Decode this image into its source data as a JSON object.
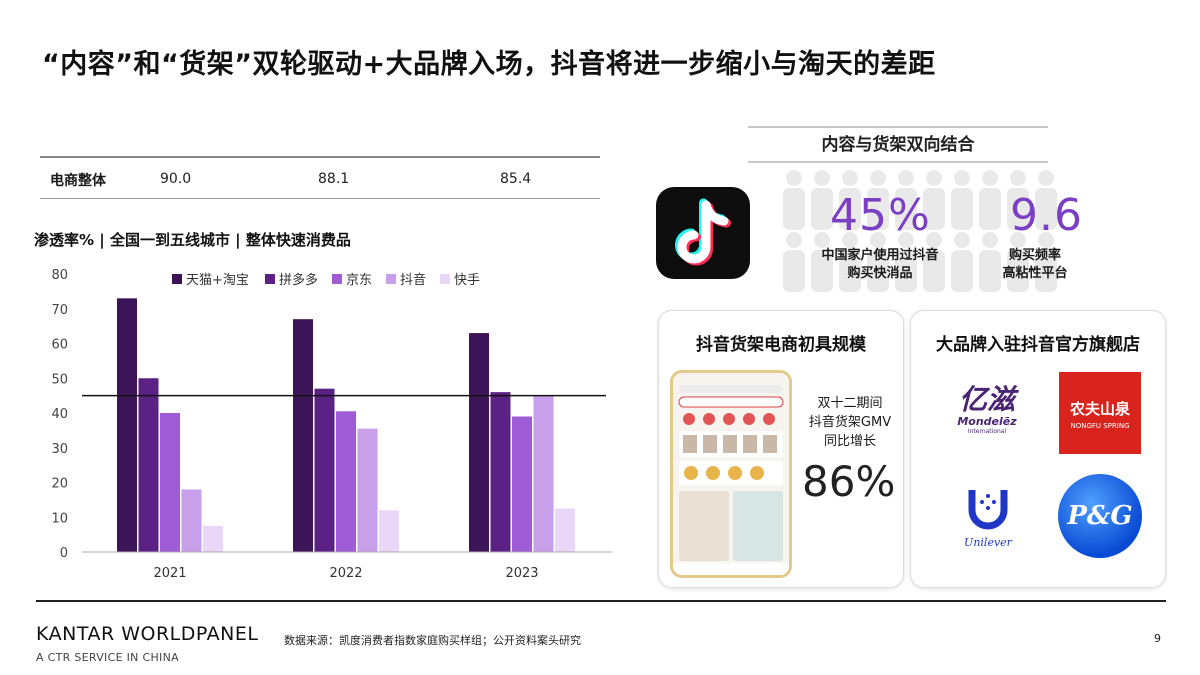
{
  "title": "“内容”和“货架”双轮驱动+大品牌入场，抖音将进一步缩小与淘天的差距",
  "ecommerce": {
    "label": "电商整体",
    "values": [
      "90.0",
      "88.1",
      "85.4"
    ]
  },
  "chart_subtitle": "渗透率% | 全国一到五线城市 | 整体快速消费品",
  "chart_data": {
    "type": "bar",
    "categories": [
      "2021",
      "2022",
      "2023"
    ],
    "series": [
      {
        "name": "天猫+淘宝",
        "color": "#3d1458",
        "values": [
          73,
          67,
          63
        ]
      },
      {
        "name": "拼多多",
        "color": "#5b2184",
        "values": [
          50,
          47,
          46
        ]
      },
      {
        "name": "京东",
        "color": "#a05bd6",
        "values": [
          40,
          40.5,
          39
        ]
      },
      {
        "name": "抖音",
        "color": "#c79fea",
        "values": [
          18,
          35.5,
          45
        ]
      },
      {
        "name": "快手",
        "color": "#ead6f7",
        "values": [
          7.5,
          12,
          12.5
        ]
      }
    ],
    "ylim": [
      0,
      80
    ],
    "yticks": [
      "0",
      "10",
      "20",
      "30",
      "40",
      "50",
      "60",
      "70",
      "80"
    ],
    "reference_line": 45,
    "legend": "top",
    "grid": false
  },
  "panel": {
    "title": "内容与货架双向结合",
    "stat1": {
      "value": "45%",
      "label_line1": "中国家户使用过抖音",
      "label_line2": "购买快消品"
    },
    "stat2": {
      "value": "9.6",
      "label_line1": "购买频率",
      "label_line2": "高粘性平台"
    }
  },
  "card1": {
    "title": "抖音货架电商初具规模",
    "gmv_line1": "双十二期间",
    "gmv_line2": "抖音货架GMV",
    "gmv_line3": "同比增长",
    "gmv_value": "86%"
  },
  "card2": {
    "title": "大品牌入驻抖音官方旗舰店",
    "brands": {
      "mondelez_cn": "亿滋",
      "mondelez_en": "Mondelēz",
      "mondelez_tag": "International",
      "nongfu_cn": "农夫山泉",
      "nongfu_en": "NONGFU SPRING",
      "unilever": "Unilever",
      "pg": "P&G"
    }
  },
  "footer": {
    "brand": "KANTAR WORLDPANEL",
    "brand_sub": "A CTR SERVICE IN CHINA",
    "source": "数据来源：凯度消费者指数家庭购买样组；公开资料案头研究",
    "page": "9"
  }
}
